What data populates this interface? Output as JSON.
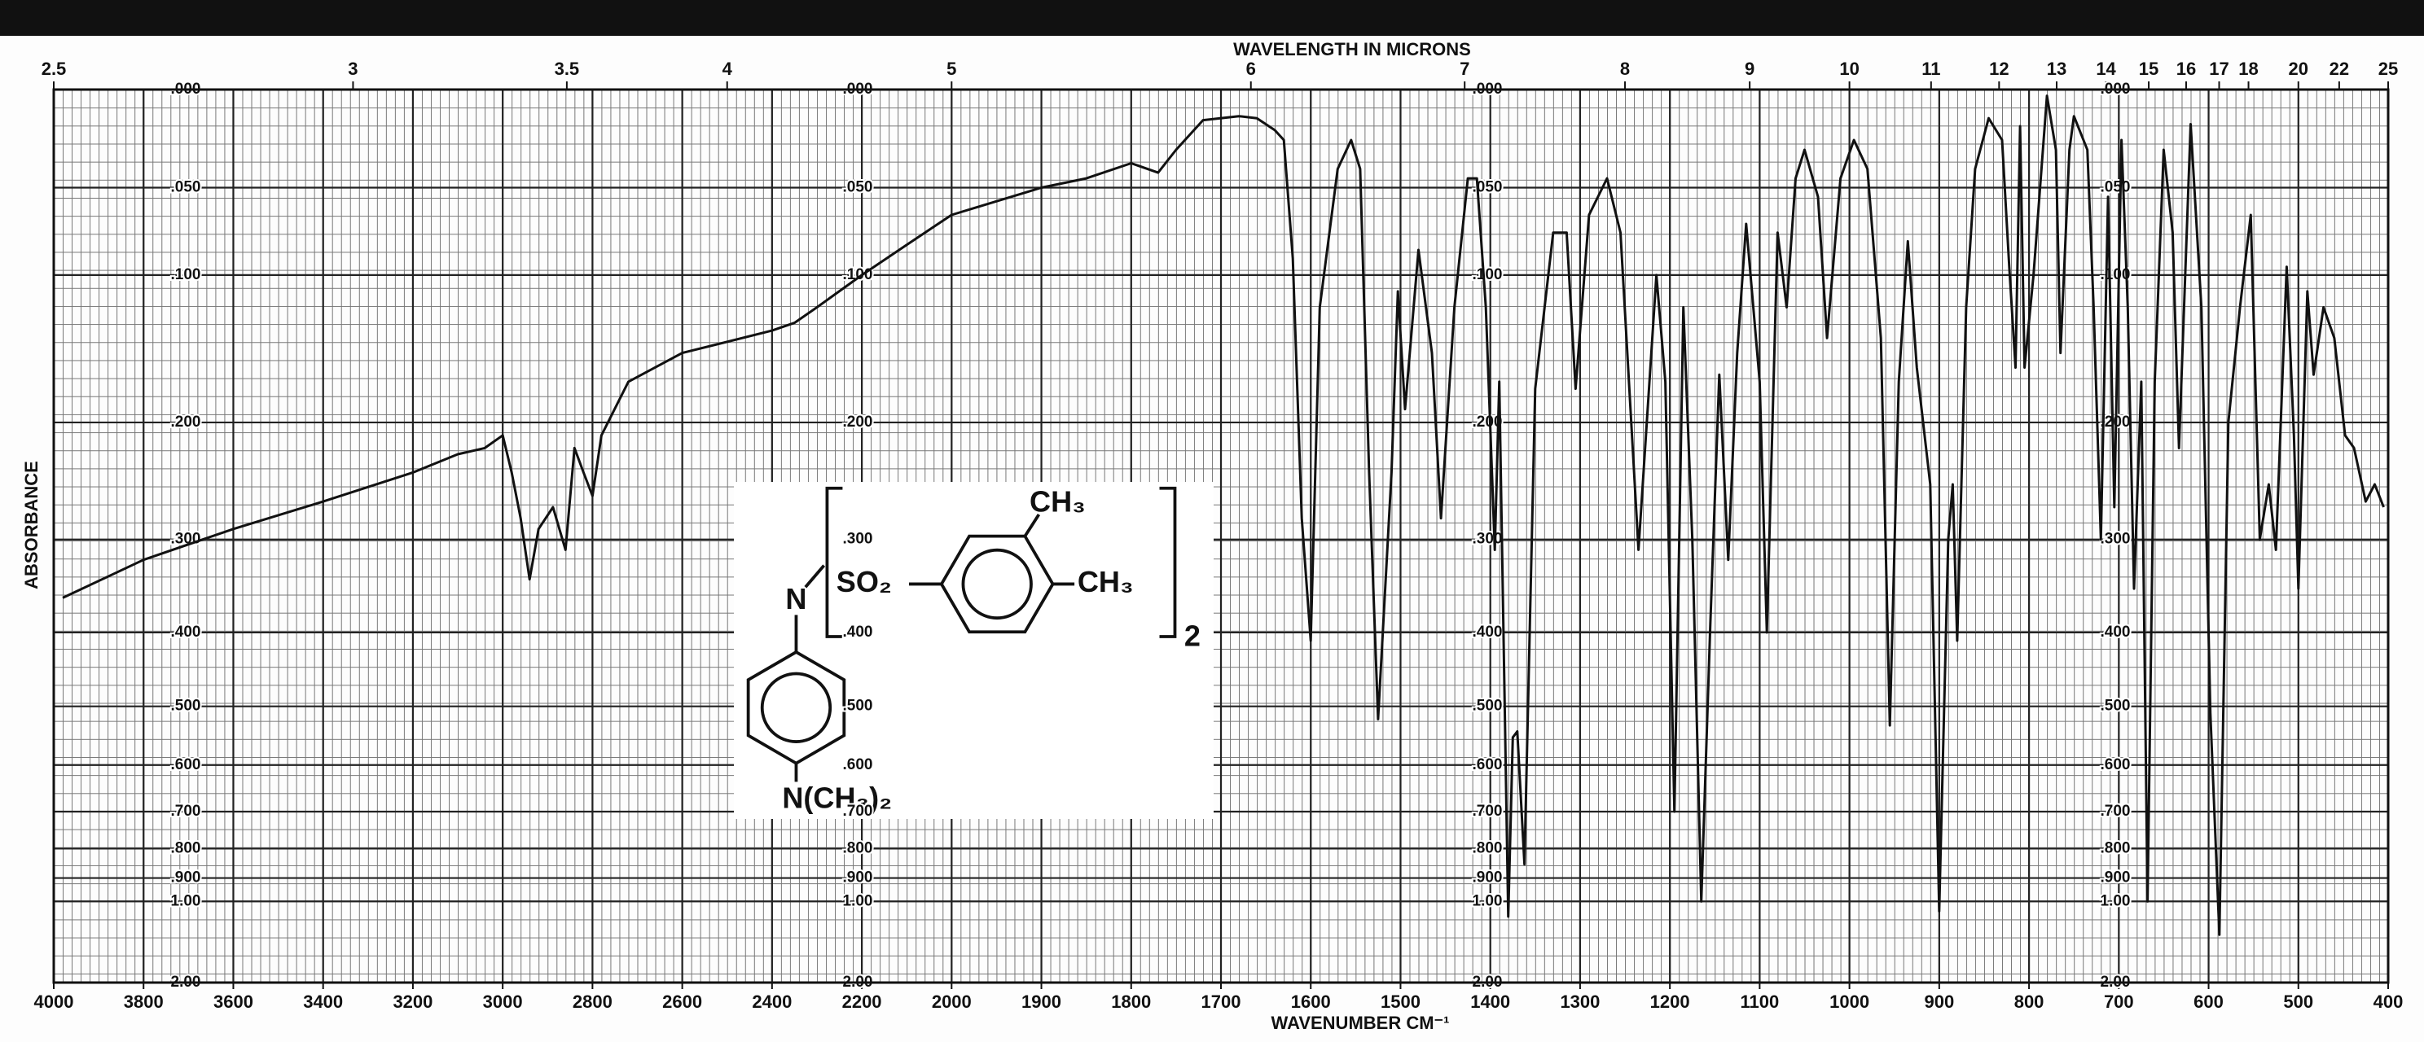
{
  "chart_data": {
    "type": "line",
    "title": "WAVELENGTH IN MICRONS",
    "xlabel": "WAVENUMBER CM⁻¹",
    "ylabel": "ABSORBANCE",
    "x": [
      3980,
      3800,
      3600,
      3400,
      3200,
      3100,
      3040,
      3000,
      2980,
      2960,
      2940,
      2920,
      2888,
      2860,
      2840,
      2820,
      2800,
      2780,
      2720,
      2600,
      2400,
      2350,
      2300,
      2200,
      2100,
      2000,
      1900,
      1850,
      1800,
      1770,
      1750,
      1720,
      1680,
      1660,
      1640,
      1630,
      1620,
      1610,
      1600,
      1590,
      1570,
      1555,
      1545,
      1535,
      1525,
      1510,
      1503,
      1495,
      1480,
      1465,
      1455,
      1440,
      1425,
      1415,
      1405,
      1395,
      1390,
      1380,
      1375,
      1370,
      1362,
      1350,
      1330,
      1315,
      1305,
      1290,
      1270,
      1255,
      1235,
      1215,
      1205,
      1195,
      1185,
      1175,
      1165,
      1155,
      1145,
      1135,
      1125,
      1115,
      1100,
      1092,
      1080,
      1070,
      1060,
      1050,
      1035,
      1025,
      1010,
      995,
      980,
      965,
      955,
      945,
      935,
      925,
      910,
      900,
      890,
      885,
      880,
      870,
      860,
      845,
      830,
      822,
      815,
      810,
      805,
      795,
      780,
      770,
      765,
      755,
      750,
      735,
      728,
      720,
      712,
      705,
      697,
      690,
      683,
      675,
      668,
      660,
      650,
      640,
      633,
      620,
      608,
      598,
      588,
      578,
      565,
      553,
      543,
      533,
      525,
      513,
      505,
      500,
      490,
      483,
      472,
      460,
      448,
      438,
      425,
      415,
      405
    ],
    "values": [
      0.36,
      0.32,
      0.29,
      0.265,
      0.24,
      0.225,
      0.22,
      0.21,
      0.24,
      0.28,
      0.34,
      0.29,
      0.27,
      0.31,
      0.22,
      0.24,
      0.26,
      0.21,
      0.17,
      0.15,
      0.135,
      0.13,
      0.12,
      0.1,
      0.082,
      0.065,
      0.05,
      0.045,
      0.037,
      0.042,
      0.03,
      0.015,
      0.013,
      0.014,
      0.02,
      0.025,
      0.09,
      0.28,
      0.41,
      0.12,
      0.04,
      0.025,
      0.04,
      0.24,
      0.52,
      0.24,
      0.11,
      0.19,
      0.085,
      0.15,
      0.28,
      0.12,
      0.045,
      0.045,
      0.12,
      0.31,
      0.17,
      1.08,
      0.55,
      0.54,
      0.85,
      0.175,
      0.075,
      0.075,
      0.175,
      0.065,
      0.045,
      0.075,
      0.31,
      0.1,
      0.17,
      0.7,
      0.12,
      0.3,
      1.0,
      0.39,
      0.165,
      0.32,
      0.15,
      0.07,
      0.17,
      0.4,
      0.075,
      0.12,
      0.045,
      0.03,
      0.055,
      0.14,
      0.045,
      0.025,
      0.04,
      0.14,
      0.53,
      0.17,
      0.08,
      0.16,
      0.25,
      1.05,
      0.3,
      0.25,
      0.41,
      0.12,
      0.04,
      0.014,
      0.025,
      0.095,
      0.16,
      0.018,
      0.16,
      0.1,
      0.003,
      0.03,
      0.15,
      0.03,
      0.013,
      0.03,
      0.12,
      0.3,
      0.055,
      0.27,
      0.025,
      0.12,
      0.35,
      0.17,
      1.0,
      0.17,
      0.03,
      0.075,
      0.22,
      0.017,
      0.12,
      0.51,
      1.2,
      0.2,
      0.12,
      0.065,
      0.3,
      0.25,
      0.31,
      0.095,
      0.21,
      0.35,
      0.11,
      0.165,
      0.12,
      0.14,
      0.21,
      0.22,
      0.265,
      0.25,
      0.27
    ],
    "color": "#111111",
    "xlim": [
      4000,
      400
    ],
    "xticks": [
      4000,
      3800,
      3600,
      3400,
      3200,
      3000,
      2800,
      2600,
      2400,
      2200,
      2000,
      1900,
      1800,
      1700,
      1600,
      1500,
      1400,
      1300,
      1200,
      1100,
      1000,
      900,
      800,
      700,
      600,
      500,
      400
    ],
    "x2lim": [
      2.5,
      25
    ],
    "x2ticks": [
      2.5,
      3,
      3.5,
      4,
      5,
      6,
      7,
      8,
      9,
      10,
      11,
      12,
      13,
      14,
      15,
      16,
      17,
      18,
      20,
      22,
      25
    ],
    "ylim": [
      0,
      2
    ],
    "yscale": "absorbance",
    "yticks": [
      {
        "value": 0,
        "label": ".000"
      },
      {
        "value": 0.05,
        "label": ".050"
      },
      {
        "value": 0.1,
        "label": ".100"
      },
      {
        "value": 0.2,
        "label": ".200"
      },
      {
        "value": 0.3,
        "label": ".300"
      },
      {
        "value": 0.4,
        "label": ".400"
      },
      {
        "value": 0.5,
        "label": ".500"
      },
      {
        "value": 0.6,
        "label": ".600"
      },
      {
        "value": 0.7,
        "label": ".700"
      },
      {
        "value": 0.8,
        "label": ".800"
      },
      {
        "value": 0.9,
        "label": ".900"
      },
      {
        "value": 1,
        "label": "1.00"
      },
      {
        "value": 2,
        "label": "2.00"
      }
    ],
    "grid": true,
    "annotations": [
      "N",
      "SO₂",
      "CH₃",
      "CH₃",
      "2",
      "N(CH₃)₂"
    ]
  }
}
